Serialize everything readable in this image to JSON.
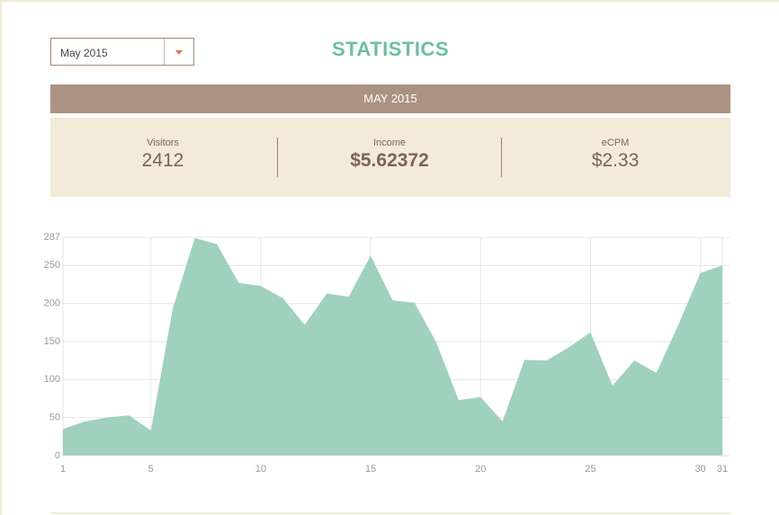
{
  "header": {
    "dropdown": "May 2015",
    "title": "STATISTICS"
  },
  "summary": {
    "period": "MAY 2015",
    "stats": [
      {
        "label": "Visitors",
        "value": "2412"
      },
      {
        "label": "Income",
        "value": "$5.62372"
      },
      {
        "label": "eCPM",
        "value": "$2.33"
      }
    ]
  },
  "chart_data": {
    "type": "area",
    "color": "#9acfbb",
    "x": [
      1,
      2,
      3,
      4,
      5,
      6,
      7,
      8,
      9,
      10,
      11,
      12,
      13,
      14,
      15,
      16,
      17,
      18,
      19,
      20,
      21,
      22,
      23,
      24,
      25,
      26,
      27,
      28,
      29,
      30,
      31
    ],
    "values": [
      35,
      45,
      50,
      53,
      33,
      194,
      286,
      278,
      227,
      223,
      207,
      172,
      213,
      209,
      263,
      204,
      201,
      148,
      73,
      77,
      45,
      126,
      125,
      142,
      162,
      92,
      125,
      109,
      172,
      240,
      250
    ],
    "xlim": [
      1,
      31
    ],
    "xticks": [
      1,
      5,
      10,
      15,
      20,
      25,
      30,
      31
    ],
    "ylim": [
      0,
      287
    ],
    "yticks": [
      0,
      50,
      100,
      150,
      200,
      250,
      287
    ],
    "grid": true
  }
}
